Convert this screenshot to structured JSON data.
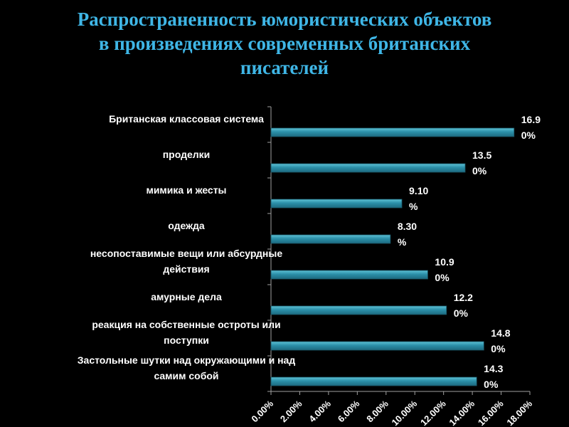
{
  "title": "Распространенность юмористических объектов\nв произведениях современных британских\nписателей",
  "colors": {
    "background": "#000000",
    "title": "#3fb6e6",
    "bar": "#2b8fa8",
    "bar_highlight": "#5ec2d6",
    "axis": "#a0a0a0",
    "text": "#ffffff"
  },
  "chart_data": {
    "type": "bar",
    "orientation": "horizontal",
    "categories": [
      "Британская классовая система",
      "проделки",
      "мимика и жесты",
      "одежда",
      "несопоставимые вещи или абсурдные действия",
      "амурные дела",
      "реакция на собственные остроты или поступки",
      "Застольные шутки над окружающими и над самим собой"
    ],
    "category_label_lines": [
      [
        "Британская классовая система"
      ],
      [
        "проделки"
      ],
      [
        "мимика и жесты"
      ],
      [
        "одежда"
      ],
      [
        "несопоставимые вещи или абсурдные",
        "действия"
      ],
      [
        "амурные дела"
      ],
      [
        "реакция на собственные остроты или",
        "поступки"
      ],
      [
        "Застольные шутки над окружающими и над",
        "самим собой"
      ]
    ],
    "values": [
      16.9,
      13.5,
      9.1,
      8.3,
      10.9,
      12.2,
      14.8,
      14.3
    ],
    "value_label_lines": [
      [
        "16.9",
        "0%"
      ],
      [
        "13.5",
        "0%"
      ],
      [
        "9.10",
        "%"
      ],
      [
        "8.30",
        "%"
      ],
      [
        "10.9",
        "0%"
      ],
      [
        "12.2",
        "0%"
      ],
      [
        "14.8",
        "0%"
      ],
      [
        "14.3",
        "0%"
      ]
    ],
    "xlim": [
      0,
      18
    ],
    "x_ticks": [
      0,
      2,
      4,
      6,
      8,
      10,
      12,
      14,
      16,
      18
    ],
    "x_tick_labels": [
      "0.00%",
      "2.00%",
      "4.00%",
      "6.00%",
      "8.00%",
      "10.00%",
      "12.00%",
      "14.00%",
      "16.00%",
      "18.00%"
    ],
    "xlabel": "",
    "ylabel": "",
    "grid": false,
    "legend": "none"
  }
}
